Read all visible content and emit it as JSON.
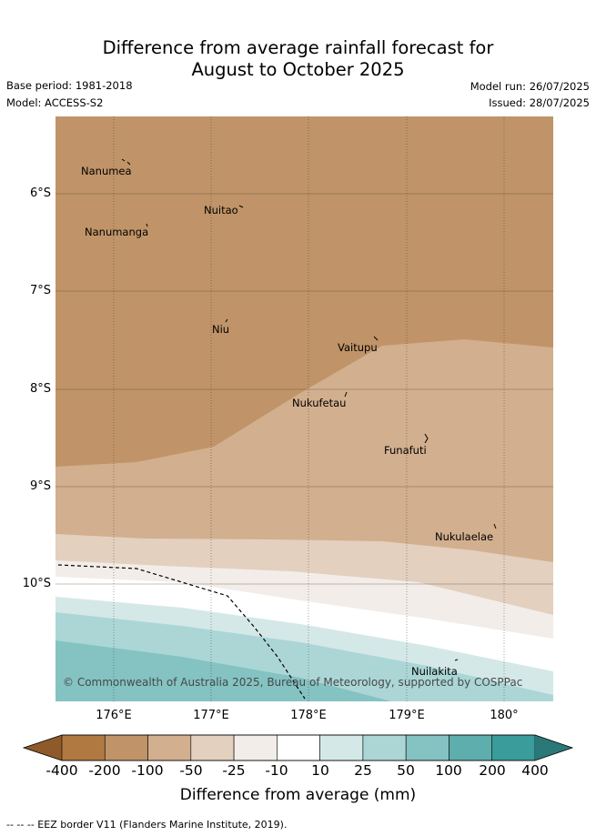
{
  "title_line1": "Difference from average rainfall forecast for",
  "title_line2": "August to October 2025",
  "base_period": "Base period: 1981-2018",
  "model": "Model: ACCESS-S2",
  "model_run": "Model run: 26/07/2025",
  "issued": "Issued: 28/07/2025",
  "lat_ticks": [
    "6°S",
    "7°S",
    "8°S",
    "9°S",
    "10°S"
  ],
  "lon_ticks": [
    "176°E",
    "177°E",
    "178°E",
    "179°E",
    "180°"
  ],
  "places": [
    "Nanumea",
    "Nuitao",
    "Nanumanga",
    "Niu",
    "Vaitupu",
    "Nukufetau",
    "Funafuti",
    "Nukulaelae",
    "Nuilakita"
  ],
  "copyright": "© Commonwealth of Australia 2025, Bureau of Meteorology, supported by COSPPac",
  "colorbar": {
    "title": "Difference from average (mm)",
    "ticks": [
      "-400",
      "-200",
      "-100",
      "-50",
      "-25",
      "-10",
      "10",
      "25",
      "50",
      "100",
      "200",
      "400"
    ],
    "colors": [
      "#8e5a2a",
      "#b07941",
      "#c09468",
      "#d2af8e",
      "#e3d0bf",
      "#f2ede8",
      "#ffffff",
      "#d4e8e8",
      "#acd6d6",
      "#85c2c2",
      "#5eaeae",
      "#3a9c9b",
      "#2a7878"
    ]
  },
  "legend_note": "--  --  -- EEZ border V11 (Flanders Marine Institute, 2019).",
  "chart_data": {
    "type": "contour-map",
    "xlim": [
      175.4,
      180.5
    ],
    "ylim": [
      -11.2,
      -5.2
    ],
    "bands_present": [
      "-100",
      "-50",
      "-25",
      "-10",
      "10",
      "25",
      "50"
    ],
    "grid": true
  }
}
